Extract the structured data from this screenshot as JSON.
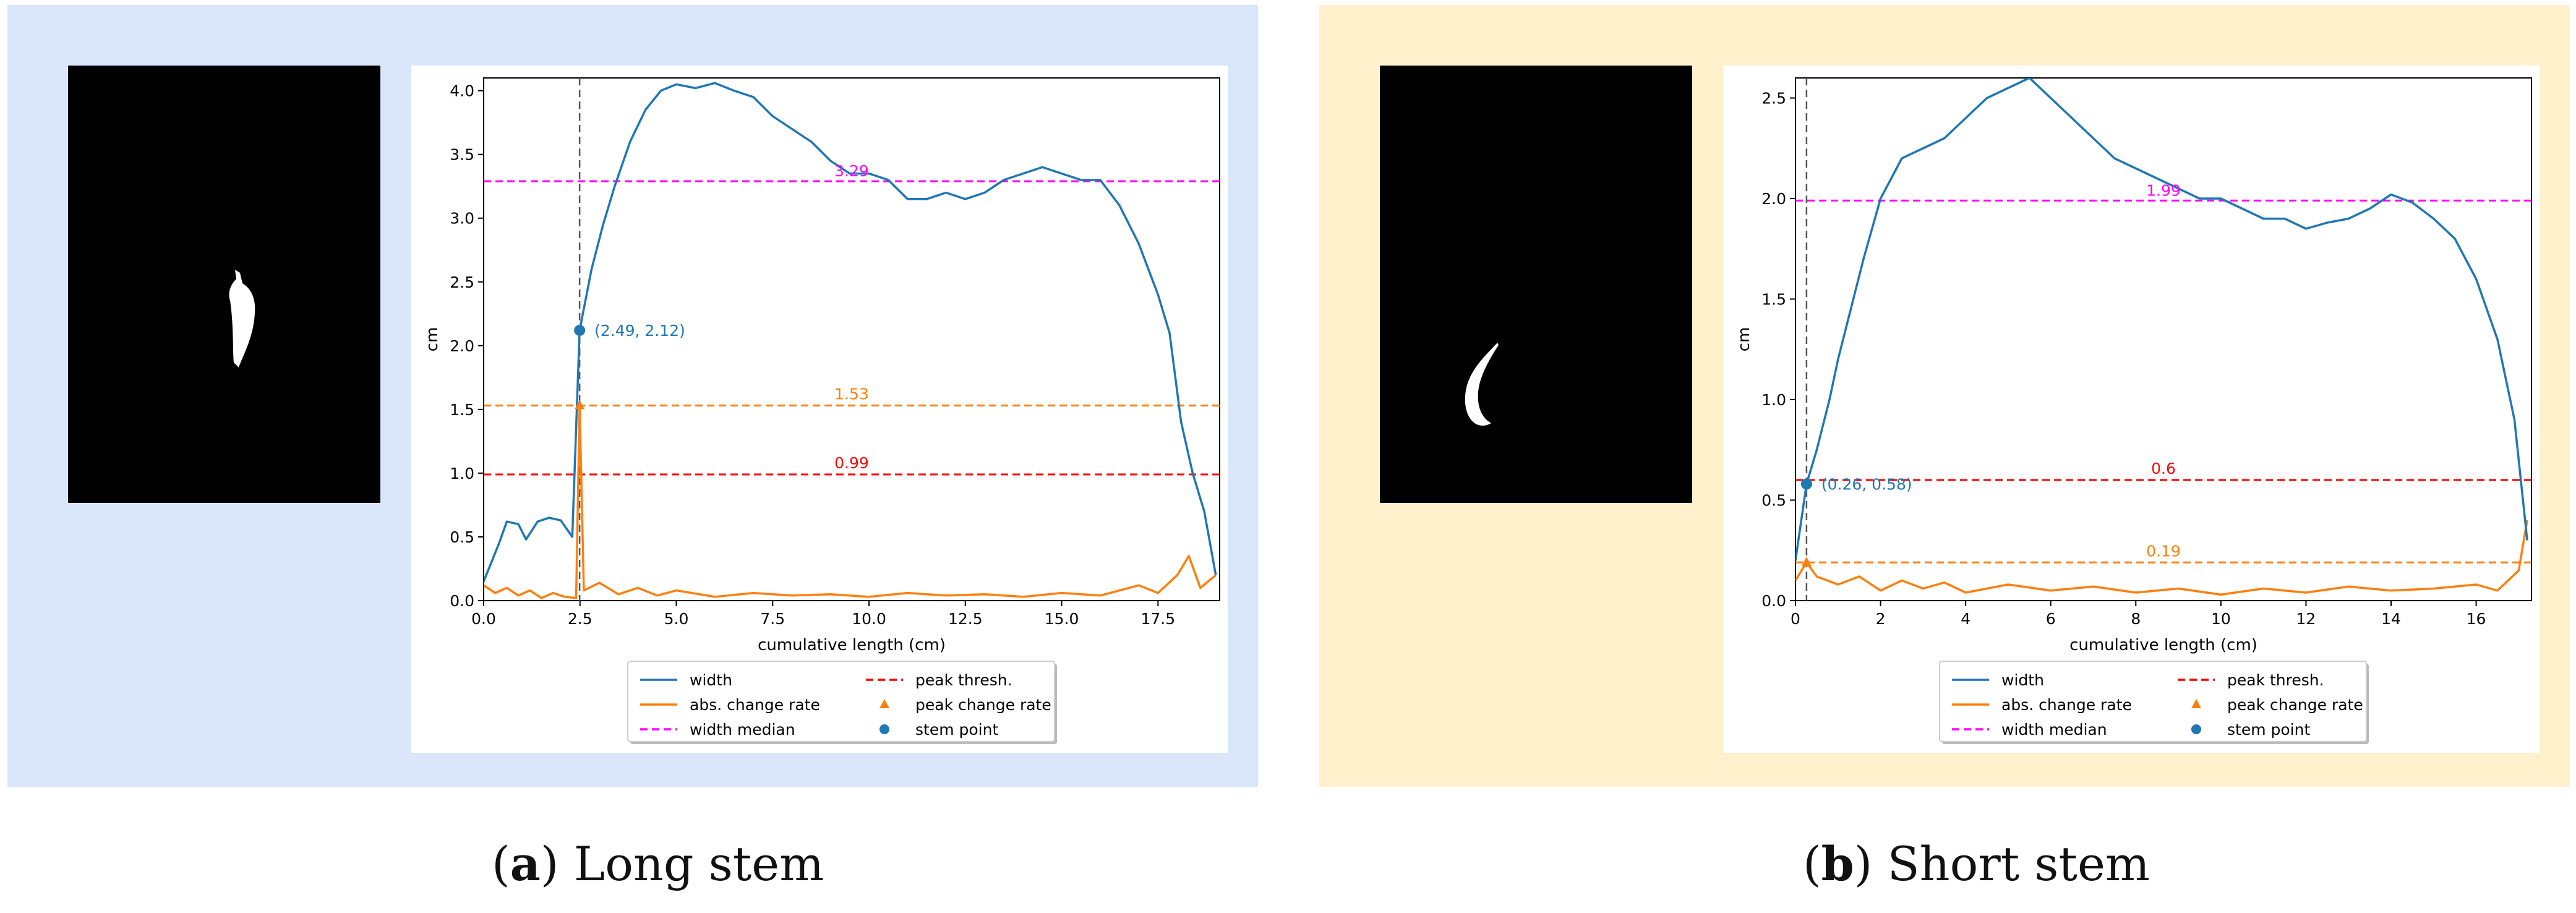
{
  "captions": [
    {
      "letter": "a",
      "text": "Long stem"
    },
    {
      "letter": "b",
      "text": "Short stem"
    }
  ],
  "colors": {
    "panel_a_bg": "#dae7fb",
    "panel_b_bg": "#fff1cc",
    "width": "#1f77b4",
    "change_rate": "#ff7f0e",
    "median": "#ff00ff",
    "peak_thresh": "#ff0000",
    "stem_guide": "#555555"
  },
  "legend_labels": [
    "width",
    "peak thresh.",
    "abs. change rate",
    "peak change rate",
    "width median",
    "stem point"
  ],
  "chart_data": [
    {
      "type": "line",
      "xlabel": "cumulative length (cm)",
      "ylabel": "cm",
      "xlim": [
        0,
        19.1
      ],
      "ylim": [
        0,
        4.1
      ],
      "xticks": [
        "0.0",
        "2.5",
        "5.0",
        "7.5",
        "10.0",
        "12.5",
        "15.0",
        "17.5"
      ],
      "yticks": [
        "0.0",
        "0.5",
        "1.0",
        "1.5",
        "2.0",
        "2.5",
        "3.0",
        "3.5",
        "4.0"
      ],
      "grid": false,
      "legend": "lower-center, below plot, 2 columns",
      "series": [
        {
          "name": "width",
          "x": [
            0,
            0.4,
            0.6,
            0.9,
            1.1,
            1.4,
            1.7,
            2.0,
            2.3,
            2.49,
            2.8,
            3.1,
            3.4,
            3.8,
            4.2,
            4.6,
            5.0,
            5.5,
            6.0,
            6.5,
            7.0,
            7.5,
            8.0,
            8.5,
            9.0,
            9.5,
            10.0,
            10.5,
            11.0,
            11.5,
            12.0,
            12.5,
            13.0,
            13.5,
            14.0,
            14.5,
            15.0,
            15.5,
            16.0,
            16.5,
            17.0,
            17.5,
            17.8,
            18.1,
            18.4,
            18.7,
            19.0
          ],
          "values": [
            0.15,
            0.45,
            0.62,
            0.6,
            0.48,
            0.62,
            0.65,
            0.63,
            0.5,
            2.12,
            2.6,
            2.95,
            3.25,
            3.6,
            3.85,
            4.0,
            4.05,
            4.02,
            4.06,
            4.0,
            3.95,
            3.8,
            3.7,
            3.6,
            3.45,
            3.35,
            3.35,
            3.3,
            3.15,
            3.15,
            3.2,
            3.15,
            3.2,
            3.3,
            3.35,
            3.4,
            3.35,
            3.3,
            3.3,
            3.1,
            2.8,
            2.4,
            2.1,
            1.4,
            1.0,
            0.7,
            0.2
          ]
        },
        {
          "name": "abs. change rate",
          "x": [
            0,
            0.3,
            0.6,
            0.9,
            1.2,
            1.5,
            1.8,
            2.1,
            2.4,
            2.49,
            2.6,
            3.0,
            3.5,
            4.0,
            4.5,
            5.0,
            6.0,
            7.0,
            8.0,
            9.0,
            10.0,
            11.0,
            12.0,
            13.0,
            14.0,
            15.0,
            16.0,
            17.0,
            17.5,
            18.0,
            18.3,
            18.6,
            19.0
          ],
          "values": [
            0.12,
            0.06,
            0.1,
            0.04,
            0.08,
            0.02,
            0.06,
            0.03,
            0.02,
            1.53,
            0.08,
            0.14,
            0.05,
            0.1,
            0.04,
            0.08,
            0.03,
            0.06,
            0.04,
            0.05,
            0.03,
            0.06,
            0.04,
            0.05,
            0.03,
            0.06,
            0.04,
            0.12,
            0.06,
            0.2,
            0.35,
            0.1,
            0.2
          ]
        },
        {
          "name": "width median",
          "y": 3.29,
          "label": "3.29"
        },
        {
          "name": "peak thresh.",
          "y": 0.99,
          "label": "0.99"
        },
        {
          "name": "peak change rate",
          "x": 2.49,
          "y": 1.53,
          "label": "1.53"
        },
        {
          "name": "stem point",
          "x": 2.49,
          "y": 2.12,
          "label": "(2.49, 2.12)"
        }
      ]
    },
    {
      "type": "line",
      "xlabel": "cumulative length (cm)",
      "ylabel": "cm",
      "xlim": [
        0,
        17.3
      ],
      "ylim": [
        0,
        2.6
      ],
      "xticks": [
        "0",
        "2",
        "4",
        "6",
        "8",
        "10",
        "12",
        "14",
        "16"
      ],
      "yticks": [
        "0.0",
        "0.5",
        "1.0",
        "1.5",
        "2.0",
        "2.5"
      ],
      "grid": false,
      "legend": "lower-center, below plot, 2 columns",
      "series": [
        {
          "name": "width",
          "x": [
            0,
            0.26,
            0.5,
            0.8,
            1.0,
            1.3,
            1.6,
            2.0,
            2.5,
            3.0,
            3.5,
            4.0,
            4.5,
            5.0,
            5.5,
            6.0,
            6.5,
            7.0,
            7.5,
            8.0,
            8.5,
            9.0,
            9.5,
            10.0,
            10.5,
            11.0,
            11.5,
            12.0,
            12.5,
            13.0,
            13.5,
            14.0,
            14.5,
            15.0,
            15.5,
            16.0,
            16.5,
            16.9,
            17.2
          ],
          "values": [
            0.2,
            0.58,
            0.75,
            1.0,
            1.2,
            1.45,
            1.7,
            2.0,
            2.2,
            2.25,
            2.3,
            2.4,
            2.5,
            2.55,
            2.6,
            2.5,
            2.4,
            2.3,
            2.2,
            2.15,
            2.1,
            2.05,
            2.0,
            2.0,
            1.95,
            1.9,
            1.9,
            1.85,
            1.88,
            1.9,
            1.95,
            2.02,
            1.98,
            1.9,
            1.8,
            1.6,
            1.3,
            0.9,
            0.3
          ]
        },
        {
          "name": "abs. change rate",
          "x": [
            0,
            0.26,
            0.5,
            1.0,
            1.5,
            2.0,
            2.5,
            3.0,
            3.5,
            4.0,
            5.0,
            6.0,
            7.0,
            8.0,
            9.0,
            10.0,
            11.0,
            12.0,
            13.0,
            14.0,
            15.0,
            16.0,
            16.5,
            17.0,
            17.2
          ],
          "values": [
            0.1,
            0.19,
            0.12,
            0.08,
            0.12,
            0.05,
            0.1,
            0.06,
            0.09,
            0.04,
            0.08,
            0.05,
            0.07,
            0.04,
            0.06,
            0.03,
            0.06,
            0.04,
            0.07,
            0.05,
            0.06,
            0.08,
            0.05,
            0.15,
            0.4
          ]
        },
        {
          "name": "width median",
          "y": 1.99,
          "label": "1.99"
        },
        {
          "name": "peak thresh.",
          "y": 0.6,
          "label": "0.6"
        },
        {
          "name": "peak change rate",
          "x": 0.26,
          "y": 0.19,
          "label": "0.19"
        },
        {
          "name": "stem point",
          "x": 0.26,
          "y": 0.58,
          "label": "(0.26, 0.58)"
        }
      ]
    }
  ]
}
